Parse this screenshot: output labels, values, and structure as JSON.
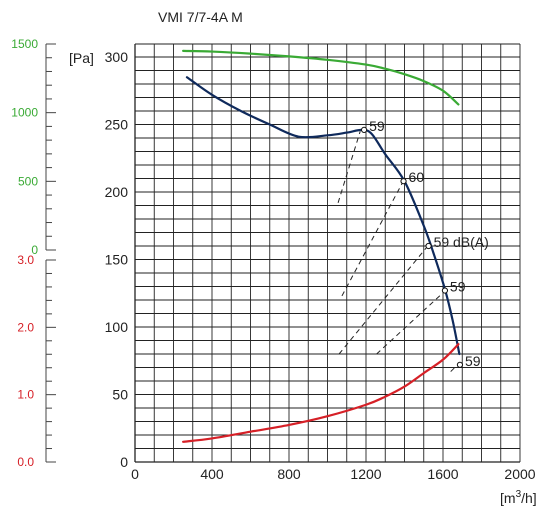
{
  "chart_data": {
    "type": "line",
    "title": "VMI 7/7-4A M",
    "xlabel": "[m3/h]",
    "ylabel": "[Pa]",
    "xlim": [
      0,
      2000
    ],
    "ylim": [
      0,
      310
    ],
    "x_ticks": [
      "0",
      "400",
      "800",
      "1200",
      "1600",
      "2000"
    ],
    "y_ticks": [
      "0",
      "50",
      "100",
      "150",
      "200",
      "250",
      "300"
    ],
    "grid": true,
    "colors": {
      "pressure": "#0f2a5c",
      "power": "#3aaa35",
      "current": "#d62027",
      "sound": "#222222"
    },
    "series": [
      {
        "key": "pressure",
        "x": [
          270,
          400,
          550,
          700,
          850,
          1000,
          1100,
          1180,
          1230,
          1300,
          1400,
          1500,
          1550,
          1610,
          1650,
          1685
        ],
        "y": [
          285,
          272,
          260,
          250,
          241,
          242,
          244,
          246,
          243,
          228,
          208,
          175,
          155,
          128,
          105,
          80
        ]
      },
      {
        "key": "power",
        "scale": "power",
        "x": [
          250,
          400,
          600,
          800,
          1000,
          1200,
          1300,
          1400,
          1500,
          1600,
          1680
        ],
        "y": [
          1450,
          1445,
          1430,
          1410,
          1385,
          1350,
          1320,
          1280,
          1230,
          1160,
          1060
        ]
      },
      {
        "key": "current",
        "scale": "current",
        "x": [
          250,
          400,
          600,
          800,
          1000,
          1200,
          1300,
          1400,
          1500,
          1600,
          1680
        ],
        "y": [
          0.3,
          0.35,
          0.45,
          0.55,
          0.68,
          0.85,
          0.97,
          1.12,
          1.32,
          1.52,
          1.75
        ]
      }
    ],
    "sound_lines": [
      {
        "label": "59",
        "x": [
          1055,
          1170
        ],
        "y": [
          192,
          245
        ]
      },
      {
        "label": "60",
        "x": [
          1075,
          1390
        ],
        "y": [
          123,
          207
        ]
      },
      {
        "label": "59 dB(A)",
        "x": [
          1060,
          1515
        ],
        "y": [
          80,
          159
        ]
      },
      {
        "label": "59",
        "x": [
          1255,
          1605
        ],
        "y": [
          80,
          126
        ]
      },
      {
        "label": "59",
        "x": [
          1640,
          1690
        ],
        "y": [
          67,
          74
        ]
      }
    ],
    "markers": [
      {
        "label": "59",
        "x": 1190,
        "y": 246
      },
      {
        "label": "60",
        "x": 1395,
        "y": 208
      },
      {
        "label": "59 dB(A)",
        "x": 1525,
        "y": 160
      },
      {
        "label": "59",
        "x": 1610,
        "y": 127
      },
      {
        "label": "59",
        "x": 1688,
        "y": 72
      }
    ],
    "power_axis": {
      "ticks": [
        "0",
        "500",
        "1000",
        "1500"
      ],
      "values": [
        0,
        500,
        1000,
        1500
      ],
      "range": [
        0,
        1500
      ],
      "color": "#3aaa35"
    },
    "current_axis": {
      "ticks": [
        "0.0",
        "1.0",
        "2.0",
        "3.0"
      ],
      "values": [
        0,
        1,
        2,
        3
      ],
      "range": [
        0,
        3
      ],
      "color": "#d62027"
    }
  }
}
